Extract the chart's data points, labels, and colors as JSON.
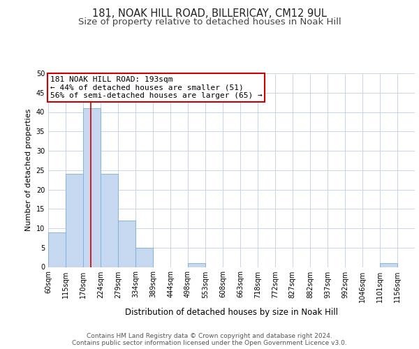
{
  "title1": "181, NOAK HILL ROAD, BILLERICAY, CM12 9UL",
  "title2": "Size of property relative to detached houses in Noak Hill",
  "xlabel": "Distribution of detached houses by size in Noak Hill",
  "ylabel": "Number of detached properties",
  "bin_labels": [
    "60sqm",
    "115sqm",
    "170sqm",
    "224sqm",
    "279sqm",
    "334sqm",
    "389sqm",
    "444sqm",
    "498sqm",
    "553sqm",
    "608sqm",
    "663sqm",
    "718sqm",
    "772sqm",
    "827sqm",
    "882sqm",
    "937sqm",
    "992sqm",
    "1046sqm",
    "1101sqm",
    "1156sqm"
  ],
  "bin_edges": [
    60,
    115,
    170,
    224,
    279,
    334,
    389,
    444,
    498,
    553,
    608,
    663,
    718,
    772,
    827,
    882,
    937,
    992,
    1046,
    1101,
    1156,
    1211
  ],
  "counts": [
    9,
    24,
    41,
    24,
    12,
    5,
    0,
    0,
    1,
    0,
    0,
    0,
    0,
    0,
    0,
    0,
    0,
    0,
    0,
    1,
    0
  ],
  "bar_color": "#c5d8f0",
  "bar_edge_color": "#7bafd4",
  "property_size": 193,
  "red_line_color": "#cc0000",
  "annotation_line1": "181 NOAK HILL ROAD: 193sqm",
  "annotation_line2": "← 44% of detached houses are smaller (51)",
  "annotation_line3": "56% of semi-detached houses are larger (65) →",
  "annotation_box_color": "#cc0000",
  "ylim": [
    0,
    50
  ],
  "yticks": [
    0,
    5,
    10,
    15,
    20,
    25,
    30,
    35,
    40,
    45,
    50
  ],
  "footer_text": "Contains HM Land Registry data © Crown copyright and database right 2024.\nContains public sector information licensed under the Open Government Licence v3.0.",
  "bg_color": "#ffffff",
  "grid_color": "#c8d4e8",
  "title1_fontsize": 10.5,
  "title2_fontsize": 9.5,
  "xlabel_fontsize": 8.5,
  "ylabel_fontsize": 8,
  "tick_fontsize": 7,
  "annotation_fontsize": 8,
  "footer_fontsize": 6.5
}
